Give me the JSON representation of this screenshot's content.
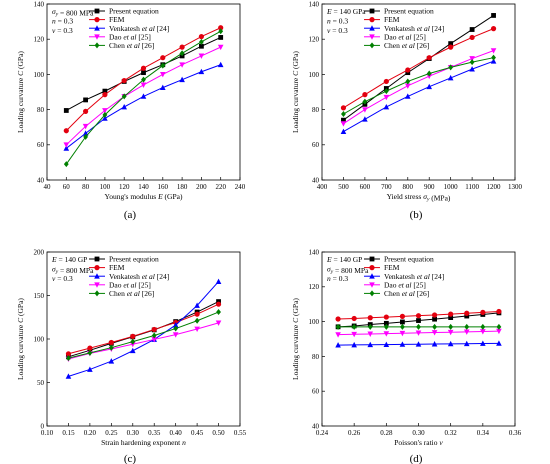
{
  "colors": {
    "present": "#000000",
    "fem": "#e3000f",
    "venkatesh": "#0000ff",
    "dao": "#ff00ff",
    "chen": "#008000"
  },
  "legend_labels": [
    "Present equation",
    "FEM",
    "Venkatesh et al [24]",
    "Dao et al [25]",
    "Chen et al [26]"
  ],
  "chart_data": [
    {
      "type": "line",
      "panel_label": "(a)",
      "params": [
        "σy = 800 MPa",
        "n = 0.3",
        "ν = 0.3"
      ],
      "xlabel": "Young's modulus E (GPa)",
      "ylabel": "Loading curvature C (GPa)",
      "xlim": [
        40,
        240
      ],
      "ylim": [
        40,
        140
      ],
      "xticks": [
        40,
        60,
        80,
        100,
        120,
        140,
        160,
        180,
        200,
        220,
        240
      ],
      "yticks": [
        40,
        60,
        80,
        100,
        120,
        140
      ],
      "legend_position": "top-left",
      "x": [
        60,
        80,
        100,
        120,
        140,
        160,
        180,
        200,
        220
      ],
      "series": [
        {
          "name": "Present equation",
          "marker": "square",
          "values": [
            79.5,
            85.5,
            90.5,
            96,
            101,
            105.5,
            110.5,
            116,
            121
          ]
        },
        {
          "name": "FEM",
          "marker": "circle",
          "values": [
            68,
            79,
            88.5,
            96.5,
            103.5,
            109.5,
            115.5,
            121.5,
            126.5
          ]
        },
        {
          "name": "Venkatesh et al [24]",
          "marker": "triangle-up",
          "values": [
            58,
            66.5,
            75,
            81.5,
            87.5,
            92.5,
            97,
            101.5,
            105.5
          ]
        },
        {
          "name": "Dao et al [25]",
          "marker": "triangle-down",
          "values": [
            60,
            70.5,
            79.5,
            87.5,
            94,
            100,
            105.5,
            110.5,
            115.5
          ]
        },
        {
          "name": "Chen et al [26]",
          "marker": "diamond",
          "values": [
            49,
            64.5,
            77,
            87.5,
            97,
            105,
            112,
            118.5,
            124.5
          ]
        }
      ]
    },
    {
      "type": "line",
      "panel_label": "(b)",
      "params": [
        "E = 140 GPa",
        "n = 0.3",
        "ν = 0.3"
      ],
      "xlabel": "Yield stress σy (MPa)",
      "ylabel": "Loading curvature C (GPa)",
      "xlim": [
        400,
        1300
      ],
      "ylim": [
        40,
        140
      ],
      "xticks": [
        400,
        500,
        600,
        700,
        800,
        900,
        1000,
        1100,
        1200,
        1300
      ],
      "yticks": [
        40,
        60,
        80,
        100,
        120,
        140
      ],
      "legend_position": "top-left",
      "x": [
        500,
        600,
        700,
        800,
        900,
        1000,
        1100,
        1200
      ],
      "series": [
        {
          "name": "Present equation",
          "marker": "square",
          "values": [
            74,
            83,
            92,
            101,
            109,
            117.5,
            125.5,
            133.5
          ]
        },
        {
          "name": "FEM",
          "marker": "circle",
          "values": [
            81,
            88.5,
            96,
            102.5,
            109.5,
            115.5,
            121,
            126
          ]
        },
        {
          "name": "Venkatesh et al [24]",
          "marker": "triangle-up",
          "values": [
            67.5,
            74.5,
            81.5,
            87.5,
            93,
            98,
            103,
            107.5
          ]
        },
        {
          "name": "Dao et al [25]",
          "marker": "triangle-down",
          "values": [
            72,
            80,
            87,
            93.5,
            99,
            104,
            109,
            113.5
          ]
        },
        {
          "name": "Chen et al [26]",
          "marker": "diamond",
          "values": [
            77.5,
            84.5,
            90.5,
            96,
            100.5,
            104,
            107,
            109.5
          ]
        }
      ]
    },
    {
      "type": "line",
      "panel_label": "(c)",
      "params": [
        "E = 140 GP",
        "σy = 800 MPa",
        "ν = 0.3"
      ],
      "xlabel": "Strain hardening exponent n",
      "ylabel": "Loading curvature C (GPa)",
      "xlim": [
        0.1,
        0.55
      ],
      "ylim": [
        0,
        200
      ],
      "xticks": [
        0.1,
        0.15,
        0.2,
        0.25,
        0.3,
        0.35,
        0.4,
        0.45,
        0.5,
        0.55
      ],
      "yticks": [
        0,
        50,
        100,
        150,
        200
      ],
      "legend_position": "top-left",
      "x": [
        0.15,
        0.2,
        0.25,
        0.3,
        0.35,
        0.4,
        0.45,
        0.5
      ],
      "series": [
        {
          "name": "Present equation",
          "marker": "square",
          "values": [
            79.5,
            87,
            95,
            102.5,
            110.5,
            120,
            131,
            143
          ]
        },
        {
          "name": "FEM",
          "marker": "circle",
          "values": [
            83,
            89.5,
            96,
            103,
            111,
            119,
            128.5,
            140
          ]
        },
        {
          "name": "Venkatesh et al [24]",
          "marker": "triangle-up",
          "values": [
            57,
            65,
            74.5,
            86.5,
            99.5,
            116,
            138.5,
            166
          ]
        },
        {
          "name": "Dao et al [25]",
          "marker": "triangle-down",
          "values": [
            77,
            83.5,
            88.5,
            94,
            99.5,
            105,
            111.5,
            118.5
          ]
        },
        {
          "name": "Chen et al [26]",
          "marker": "diamond",
          "values": [
            78,
            84,
            90,
            97,
            104,
            112,
            121,
            131
          ]
        }
      ]
    },
    {
      "type": "line",
      "panel_label": "(d)",
      "params": [
        "E = 140 GP",
        "σy = 800 MPa",
        "n = 0.3"
      ],
      "xlabel": "Poisson's ratio ν",
      "ylabel": "Loading curvature C (GPa)",
      "xlim": [
        0.24,
        0.36
      ],
      "ylim": [
        40,
        140
      ],
      "xticks": [
        0.24,
        0.26,
        0.28,
        0.3,
        0.32,
        0.34,
        0.36
      ],
      "yticks": [
        40,
        60,
        80,
        100,
        120,
        140
      ],
      "legend_position": "top-left",
      "x": [
        0.25,
        0.26,
        0.27,
        0.28,
        0.29,
        0.3,
        0.31,
        0.32,
        0.33,
        0.34,
        0.35
      ],
      "series": [
        {
          "name": "Present equation",
          "marker": "square",
          "values": [
            97,
            97.5,
            98.3,
            99,
            99.8,
            100.6,
            101.4,
            102.3,
            103.2,
            104.1,
            105
          ]
        },
        {
          "name": "FEM",
          "marker": "circle",
          "values": [
            101.5,
            101.8,
            102.2,
            102.6,
            103,
            103.4,
            103.8,
            104.3,
            104.8,
            105.3,
            105.8
          ]
        },
        {
          "name": "Venkatesh et al [24]",
          "marker": "triangle-up",
          "values": [
            86.5,
            86.6,
            86.7,
            86.8,
            86.9,
            87,
            87.1,
            87.2,
            87.3,
            87.4,
            87.5
          ]
        },
        {
          "name": "Dao et al [25]",
          "marker": "triangle-down",
          "values": [
            92.5,
            92.7,
            92.9,
            93.1,
            93.3,
            93.5,
            93.7,
            93.9,
            94.1,
            94.3,
            94.5
          ]
        },
        {
          "name": "Chen et al [26]",
          "marker": "diamond",
          "values": [
            97,
            97,
            97,
            97,
            97,
            97,
            97,
            97,
            97,
            97,
            97
          ]
        }
      ]
    }
  ]
}
